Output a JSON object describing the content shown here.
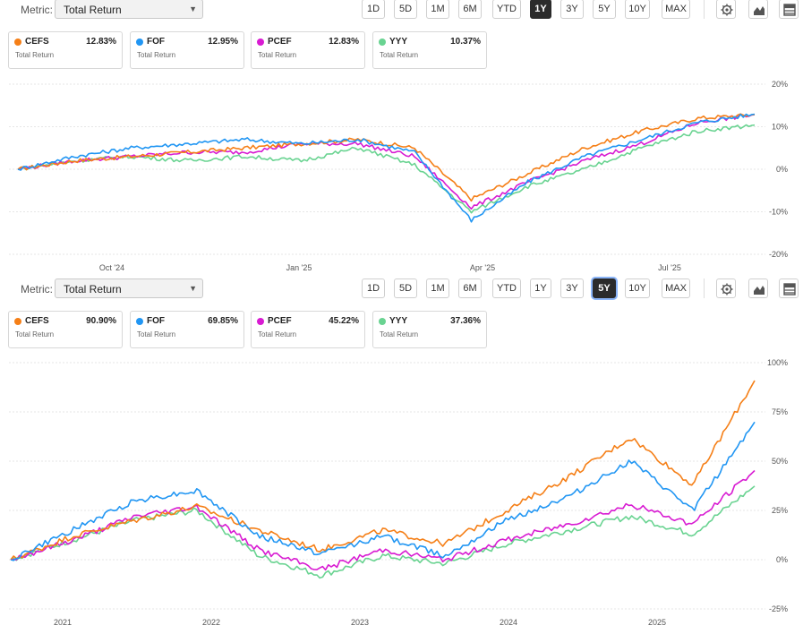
{
  "panels": [
    {
      "metric_label": "Metric:",
      "metric_value": "Total Return",
      "ranges": [
        "1D",
        "5D",
        "1M",
        "6M",
        "YTD",
        "1Y",
        "3Y",
        "5Y",
        "10Y",
        "MAX"
      ],
      "active_range": "1Y",
      "legend": [
        {
          "ticker": "CEFS",
          "value": "12.83%",
          "sub": "Total Return",
          "color": "#f57f17"
        },
        {
          "ticker": "FOF",
          "value": "12.95%",
          "sub": "Total Return",
          "color": "#2196f3"
        },
        {
          "ticker": "PCEF",
          "value": "12.83%",
          "sub": "Total Return",
          "color": "#d81bd2"
        },
        {
          "ticker": "YYY",
          "value": "10.37%",
          "sub": "Total Return",
          "color": "#69d391"
        }
      ]
    },
    {
      "metric_label": "Metric:",
      "metric_value": "Total Return",
      "ranges": [
        "1D",
        "5D",
        "1M",
        "6M",
        "YTD",
        "1Y",
        "3Y",
        "5Y",
        "10Y",
        "MAX"
      ],
      "active_range": "5Y",
      "legend": [
        {
          "ticker": "CEFS",
          "value": "90.90%",
          "sub": "Total Return",
          "color": "#f57f17"
        },
        {
          "ticker": "FOF",
          "value": "69.85%",
          "sub": "Total Return",
          "color": "#2196f3"
        },
        {
          "ticker": "PCEF",
          "value": "45.22%",
          "sub": "Total Return",
          "color": "#d81bd2"
        },
        {
          "ticker": "YYY",
          "value": "37.36%",
          "sub": "Total Return",
          "color": "#69d391"
        }
      ]
    }
  ],
  "chart_data": [
    {
      "type": "line",
      "x_ticks": [
        "Oct '24",
        "Jan '25",
        "Apr '25",
        "Jul '25"
      ],
      "y_ticks": [
        "20%",
        "10%",
        "0%",
        "-10%",
        "-20%"
      ],
      "ylim": [
        -20,
        20
      ],
      "x": [
        "Aug '24",
        "Sep '24",
        "Oct '24",
        "Nov '24",
        "Dec '24",
        "Jan '25",
        "Feb '25",
        "Mar '25",
        "Apr '25 low",
        "Apr '25",
        "May '25",
        "Jun '25",
        "Jul '25",
        "Aug '25"
      ],
      "series": [
        {
          "name": "CEFS",
          "color": "#f57f17",
          "values": [
            0,
            2,
            3,
            4,
            5,
            6,
            7,
            5,
            -7,
            -1,
            5,
            9,
            12,
            12.83
          ]
        },
        {
          "name": "FOF",
          "color": "#2196f3",
          "values": [
            0,
            3,
            5,
            6,
            7,
            6,
            7,
            4,
            -12,
            -3,
            3,
            7,
            11,
            12.95
          ]
        },
        {
          "name": "PCEF",
          "color": "#d81bd2",
          "values": [
            0,
            2,
            3,
            4,
            4,
            6,
            6,
            3,
            -9,
            -3,
            2,
            6,
            11,
            12.83
          ]
        },
        {
          "name": "YYY",
          "color": "#69d391",
          "values": [
            0,
            2,
            3,
            2,
            3,
            2,
            5,
            1,
            -10,
            -4,
            0,
            5,
            9,
            10.37
          ]
        }
      ]
    },
    {
      "type": "line",
      "x_ticks": [
        "2021",
        "2022",
        "2023",
        "2024",
        "2025"
      ],
      "y_ticks": [
        "100%",
        "75%",
        "50%",
        "25%",
        "0%",
        "-25%"
      ],
      "ylim": [
        -25,
        100
      ],
      "x": [
        "Aug '20",
        "Jan '21",
        "Jul '21",
        "Jan '22",
        "Jul '22",
        "Jan '23",
        "Jul '23",
        "Oct '23",
        "Jan '24",
        "Jul '24",
        "Jan '25",
        "Apr '25",
        "Aug '25"
      ],
      "series": [
        {
          "name": "CEFS",
          "color": "#f57f17",
          "values": [
            0,
            12,
            20,
            27,
            15,
            5,
            15,
            8,
            25,
            42,
            62,
            38,
            90.9
          ]
        },
        {
          "name": "FOF",
          "color": "#2196f3",
          "values": [
            0,
            15,
            30,
            35,
            12,
            3,
            12,
            2,
            20,
            32,
            50,
            25,
            69.85
          ]
        },
        {
          "name": "PCEF",
          "color": "#d81bd2",
          "values": [
            0,
            10,
            22,
            27,
            5,
            -5,
            5,
            0,
            10,
            18,
            28,
            18,
            45.22
          ]
        },
        {
          "name": "YYY",
          "color": "#69d391",
          "values": [
            0,
            10,
            20,
            25,
            2,
            -8,
            2,
            -2,
            8,
            15,
            22,
            13,
            37.36
          ]
        }
      ]
    }
  ]
}
